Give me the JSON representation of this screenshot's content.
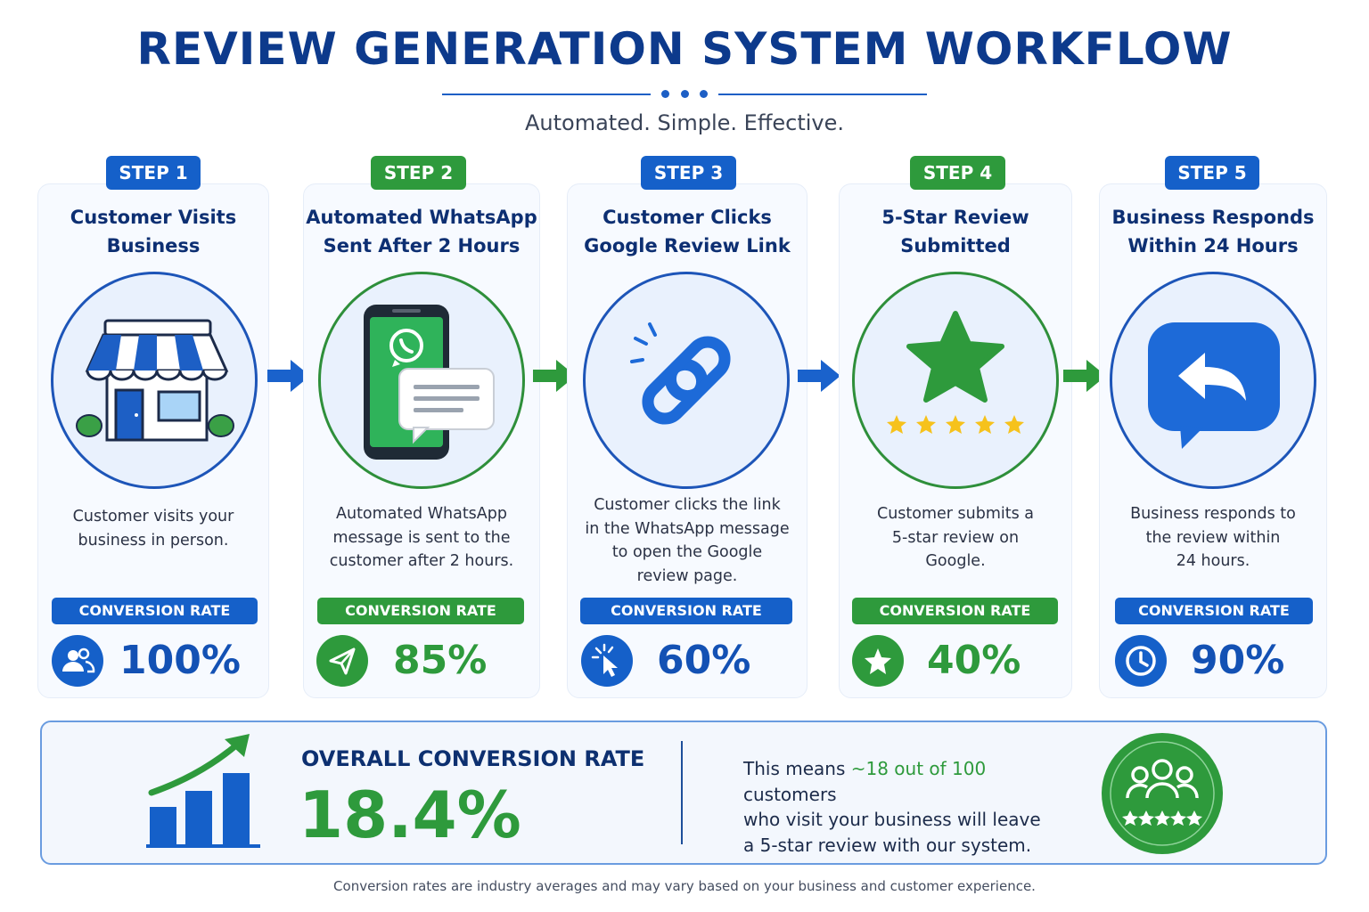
{
  "header": {
    "title": "REVIEW GENERATION SYSTEM WORKFLOW",
    "tagline": "Automated. Simple. Effective."
  },
  "conversion_label": "CONVERSION RATE",
  "steps": [
    {
      "badge": "STEP 1",
      "title_line1": "Customer Visits",
      "title_line2": "Business",
      "desc": [
        "Customer visits your",
        "business in person."
      ],
      "rate": "100%",
      "icon": "store-icon",
      "rate_icon": "users-icon",
      "color": "#1560c9"
    },
    {
      "badge": "STEP 2",
      "title_line1": "Automated WhatsApp",
      "title_line2": "Sent After 2 Hours",
      "desc": [
        "Automated WhatsApp",
        "message is sent to the",
        "customer after 2 hours."
      ],
      "rate": "85%",
      "icon": "phone-whatsapp-icon",
      "rate_icon": "send-icon",
      "color": "#2e9a3c"
    },
    {
      "badge": "STEP 3",
      "title_line1": "Customer Clicks",
      "title_line2": "Google Review Link",
      "desc": [
        "Customer clicks the link",
        "in the WhatsApp message",
        "to open the Google",
        "review page."
      ],
      "rate": "60%",
      "icon": "link-icon",
      "rate_icon": "cursor-click-icon",
      "color": "#1560c9"
    },
    {
      "badge": "STEP 4",
      "title_line1": "5-Star Review",
      "title_line2": "Submitted",
      "desc": [
        "Customer submits a",
        "5-star review on",
        "Google."
      ],
      "rate": "40%",
      "icon": "star-rating-icon",
      "rate_icon": "star-icon",
      "color": "#2e9a3c"
    },
    {
      "badge": "STEP 5",
      "title_line1": "Business Responds",
      "title_line2": "Within 24 Hours",
      "desc": [
        "Business responds to",
        "the review within",
        "24 hours."
      ],
      "rate": "90%",
      "icon": "reply-bubble-icon",
      "rate_icon": "clock-icon",
      "color": "#1560c9"
    }
  ],
  "summary": {
    "label": "OVERALL CONVERSION RATE",
    "value": "18.4%",
    "text_pre": "This means ",
    "text_highlight": "~18 out of 100",
    "text_post": " customers",
    "text_line2": "who visit your business will leave",
    "text_line3": "a 5-star review with our system.",
    "icon": "growth-chart-icon",
    "badge_icon": "customers-stars-icon"
  },
  "footnote": "Conversion rates are industry averages and may vary based on your business and customer experience."
}
